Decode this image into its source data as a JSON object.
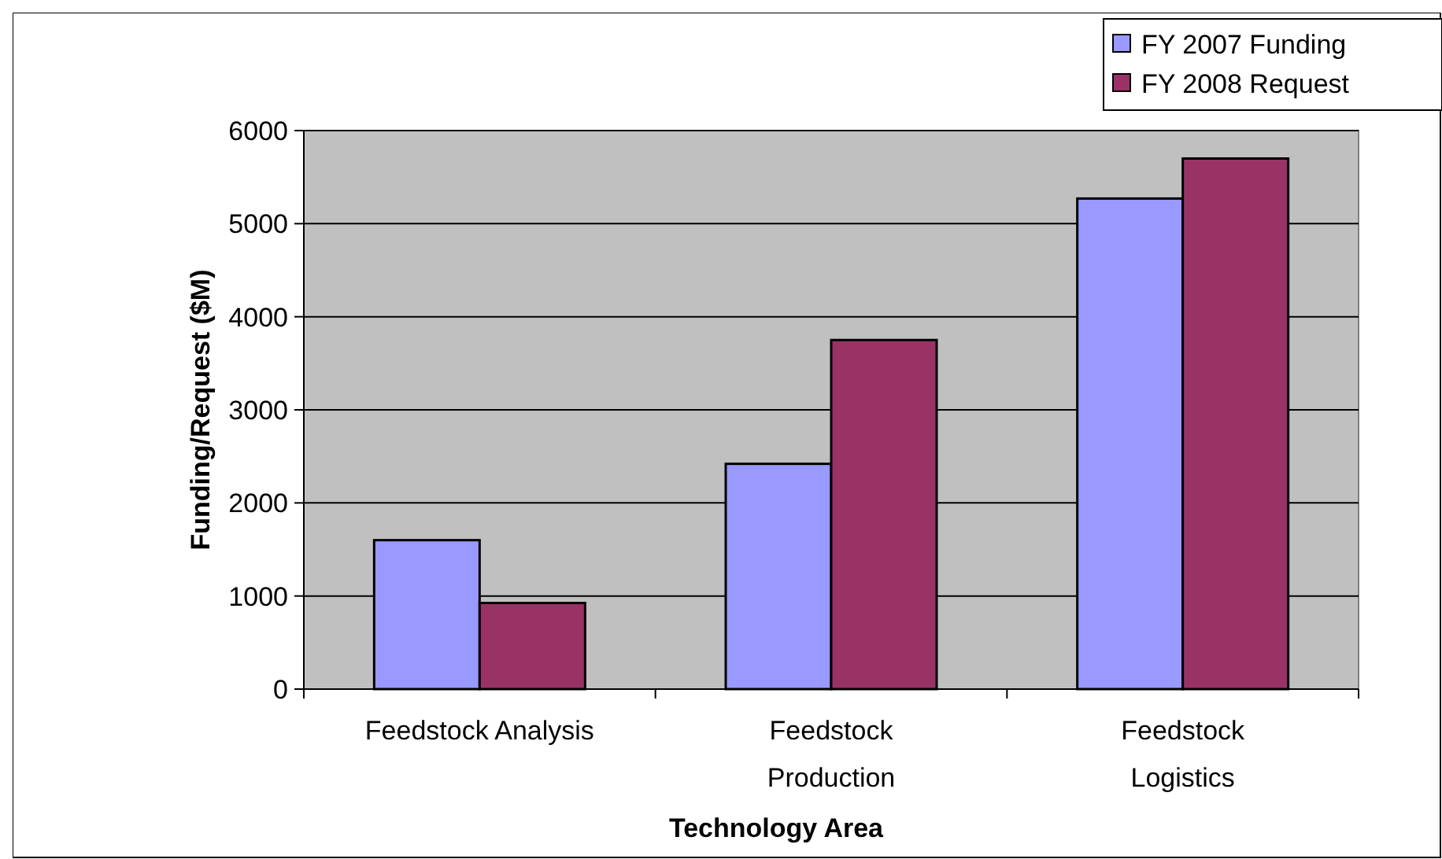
{
  "chart_data": {
    "type": "bar",
    "xlabel": "Technology Area",
    "ylabel": "Funding/Request ($M)",
    "categories": [
      "Feedstock Analysis",
      "Feedstock Production",
      "Feedstock Logistics"
    ],
    "series": [
      {
        "name": "FY 2007 Funding",
        "color": "#9999ff",
        "values": [
          1600,
          2420,
          5270
        ]
      },
      {
        "name": "FY 2008 Request",
        "color": "#993366",
        "values": [
          925,
          3750,
          5700
        ]
      }
    ],
    "ylim": [
      0,
      6000
    ],
    "yticks": [
      0,
      1000,
      2000,
      3000,
      4000,
      5000,
      6000
    ],
    "grid": "y",
    "legend": "top right"
  }
}
